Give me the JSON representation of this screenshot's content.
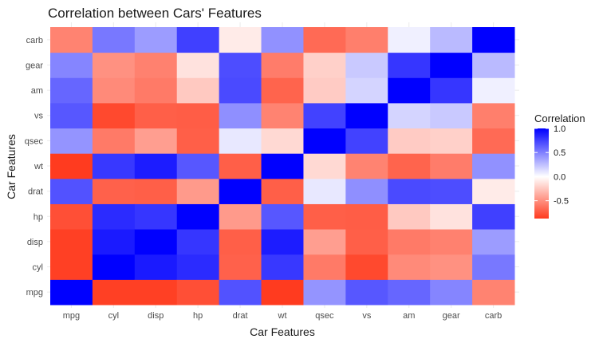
{
  "chart_data": {
    "type": "heatmap",
    "title": "Correlation between Cars' Features",
    "xlabel": "Car Features",
    "ylabel": "Car Features",
    "x_categories": [
      "mpg",
      "cyl",
      "disp",
      "hp",
      "drat",
      "wt",
      "qsec",
      "vs",
      "am",
      "gear",
      "carb"
    ],
    "y_categories": [
      "mpg",
      "cyl",
      "disp",
      "hp",
      "drat",
      "wt",
      "qsec",
      "vs",
      "am",
      "gear",
      "carb"
    ],
    "matrix": [
      [
        1.0,
        -0.85,
        -0.85,
        -0.78,
        0.68,
        -0.87,
        0.42,
        0.66,
        0.6,
        0.48,
        -0.55
      ],
      [
        -0.85,
        1.0,
        0.9,
        0.83,
        -0.7,
        0.78,
        -0.59,
        -0.81,
        -0.52,
        -0.49,
        0.53
      ],
      [
        -0.85,
        0.9,
        1.0,
        0.79,
        -0.71,
        0.89,
        -0.43,
        -0.71,
        -0.59,
        -0.56,
        0.39
      ],
      [
        -0.78,
        0.83,
        0.79,
        1.0,
        -0.45,
        0.66,
        -0.71,
        -0.72,
        -0.24,
        -0.13,
        0.75
      ],
      [
        0.68,
        -0.7,
        -0.71,
        -0.45,
        1.0,
        -0.71,
        0.09,
        0.44,
        0.71,
        0.7,
        -0.09
      ],
      [
        -0.87,
        0.78,
        0.89,
        0.66,
        -0.71,
        1.0,
        -0.17,
        -0.55,
        -0.69,
        -0.58,
        0.43
      ],
      [
        0.42,
        -0.59,
        -0.43,
        -0.71,
        0.09,
        -0.17,
        1.0,
        0.74,
        -0.23,
        -0.21,
        -0.66
      ],
      [
        0.66,
        -0.81,
        -0.71,
        -0.72,
        0.44,
        -0.55,
        0.74,
        1.0,
        0.17,
        0.21,
        -0.57
      ],
      [
        0.6,
        -0.52,
        -0.59,
        -0.24,
        0.71,
        -0.69,
        -0.23,
        0.17,
        1.0,
        0.79,
        0.06
      ],
      [
        0.48,
        -0.49,
        -0.56,
        -0.13,
        0.7,
        -0.58,
        -0.21,
        0.21,
        0.79,
        1.0,
        0.27
      ],
      [
        -0.55,
        0.53,
        0.39,
        0.75,
        -0.09,
        0.43,
        -0.66,
        -0.57,
        0.06,
        0.27,
        1.0
      ]
    ],
    "color_scale": {
      "low": "#ff3b1f",
      "mid": "#ffffff",
      "high": "#0000ff",
      "min": -0.87,
      "max": 1.0
    },
    "legend": {
      "title": "Correlation",
      "position": "right",
      "ticks": [
        1.0,
        0.5,
        0.0,
        -0.5
      ],
      "tick_labels": [
        "1.0",
        "0.5",
        "0.0",
        "-0.5"
      ]
    },
    "grid": true
  }
}
